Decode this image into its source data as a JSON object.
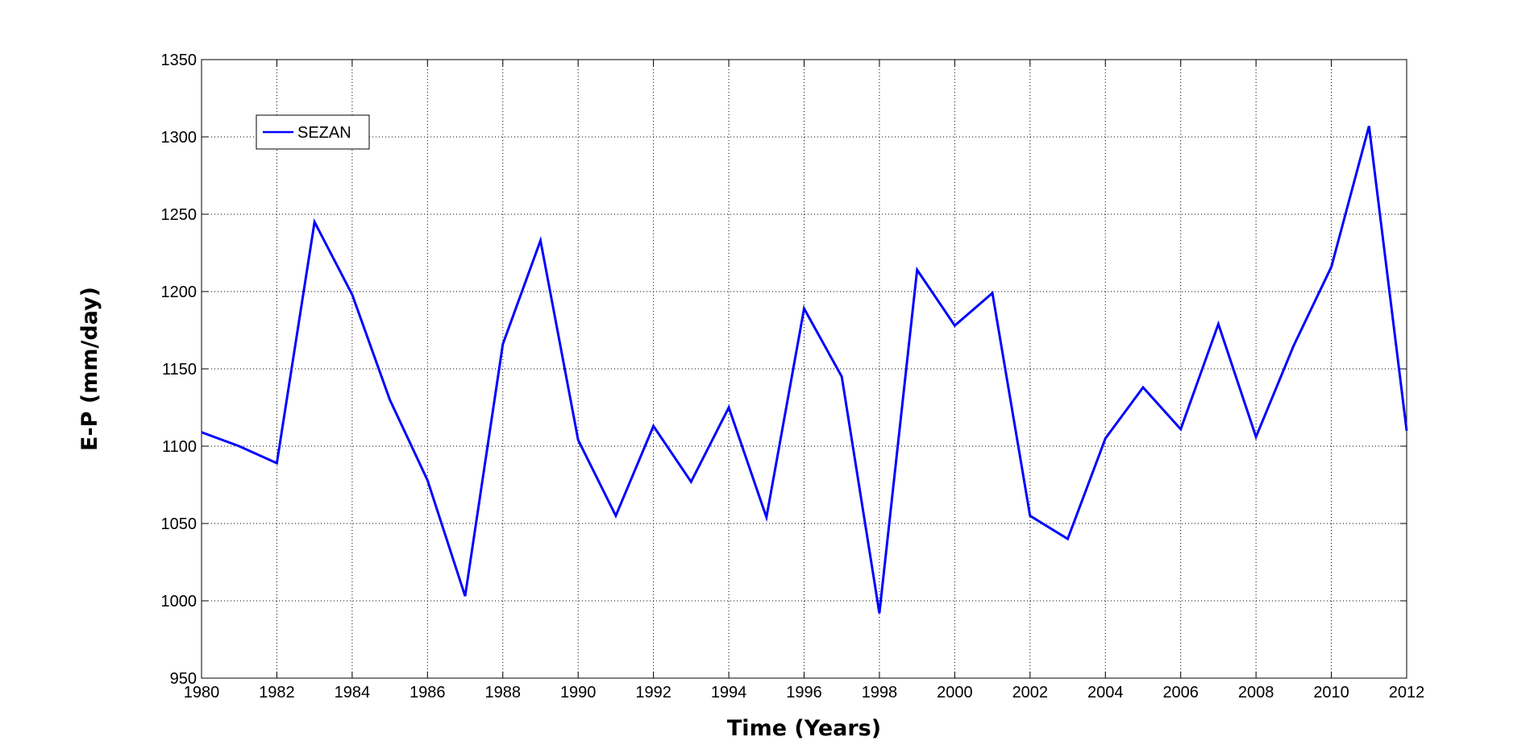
{
  "chart_data": {
    "type": "line",
    "title": "",
    "xlabel": "Time (Years)",
    "ylabel": "E-P (mm/day)",
    "xlim": [
      1980,
      2012
    ],
    "ylim": [
      950,
      1350
    ],
    "x_ticks": [
      1980,
      1982,
      1984,
      1986,
      1988,
      1990,
      1992,
      1994,
      1996,
      1998,
      2000,
      2002,
      2004,
      2006,
      2008,
      2010,
      2012
    ],
    "y_ticks": [
      950,
      1000,
      1050,
      1100,
      1150,
      1200,
      1250,
      1300,
      1350
    ],
    "grid": true,
    "legend_position": "top-left",
    "series": [
      {
        "name": "SEZAN",
        "color": "#0000ff",
        "x": [
          1980,
          1981,
          1982,
          1983,
          1984,
          1985,
          1986,
          1987,
          1988,
          1989,
          1990,
          1991,
          1992,
          1993,
          1994,
          1995,
          1996,
          1997,
          1998,
          1999,
          2000,
          2001,
          2002,
          2003,
          2004,
          2005,
          2006,
          2007,
          2008,
          2009,
          2010,
          2011,
          2012
        ],
        "values": [
          1109,
          1100,
          1089,
          1245,
          1198,
          1130,
          1078,
          1003,
          1166,
          1233,
          1104,
          1055,
          1113,
          1077,
          1125,
          1054,
          1189,
          1145,
          992,
          1214,
          1178,
          1199,
          1055,
          1040,
          1105,
          1138,
          1111,
          1179,
          1106,
          1165,
          1216,
          1307,
          1110
        ]
      }
    ]
  }
}
